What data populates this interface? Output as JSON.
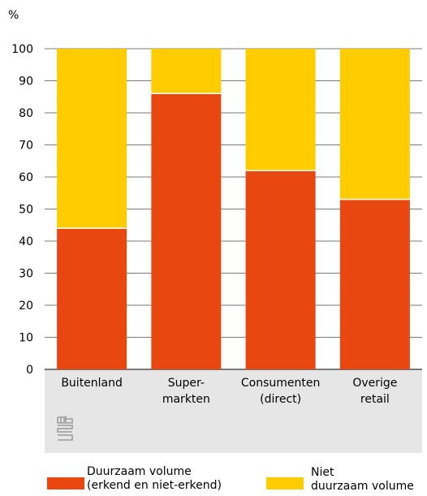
{
  "chart_data": {
    "type": "bar",
    "stacked": true,
    "ylabel": "%",
    "ylim": [
      0,
      100
    ],
    "yticks": [
      "0",
      "10",
      "20",
      "30",
      "40",
      "50",
      "60",
      "70",
      "80",
      "90",
      "100"
    ],
    "grid": true,
    "categories": [
      [
        "Buitenland"
      ],
      [
        "Super-",
        "markten"
      ],
      [
        "Consumenten",
        "(direct)"
      ],
      [
        "Overige",
        "retail"
      ]
    ],
    "series": [
      {
        "name": [
          "Duurzaam volume",
          "(erkend en niet-erkend)"
        ],
        "values": [
          44,
          86,
          62,
          53
        ],
        "color": "#e84810"
      },
      {
        "name": [
          "Niet",
          "duurzaam volume"
        ],
        "values": [
          56,
          14,
          38,
          47
        ],
        "color": "#ffcc00"
      }
    ],
    "legend_position": "bottom"
  },
  "logo": {
    "icon": "cbs-logo-icon"
  },
  "colors": {
    "axis_panel": "#e6e6e6",
    "grid": "#7a7a7a",
    "logo": "#9a9a9a"
  }
}
